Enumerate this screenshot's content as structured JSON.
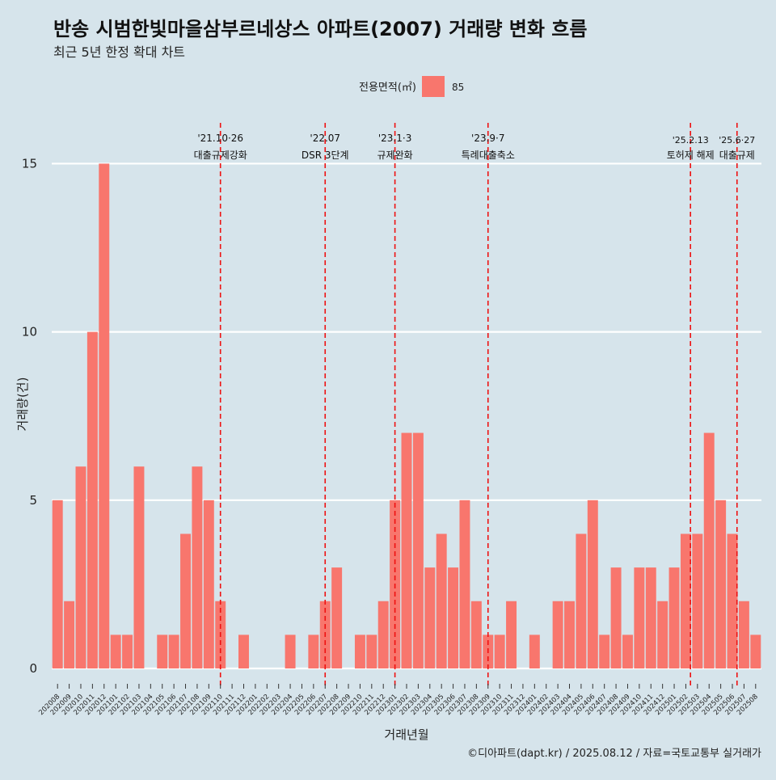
{
  "colors": {
    "background": "#d6e4eb",
    "bar": "#f8766d",
    "grid": "#ffffff",
    "event_line": "#ee1111"
  },
  "chart_data": {
    "type": "bar",
    "title": "반송 시범한빛마을삼부르네상스 아파트(2007) 거래량 변화 흐름",
    "subtitle": "최근 5년 한정 확대 차트",
    "xlabel": "거래년월",
    "ylabel": "거래량(건)",
    "caption": "©디아파트(dapt.kr) / 2025.08.12 / 자료=국토교통부 실거래가",
    "ylim": [
      -0.6,
      16.5
    ],
    "yticks": [
      0,
      5,
      10,
      15
    ],
    "grid": true,
    "legend": {
      "title": "전용면적(㎡)",
      "position": "top-center",
      "entries": [
        "85"
      ]
    },
    "categories": [
      "202008",
      "202009",
      "202010",
      "202011",
      "202012",
      "202101",
      "202102",
      "202103",
      "202104",
      "202105",
      "202106",
      "202107",
      "202108",
      "202109",
      "202110",
      "202111",
      "202112",
      "202201",
      "202202",
      "202203",
      "202204",
      "202205",
      "202206",
      "202207",
      "202208",
      "202209",
      "202210",
      "202211",
      "202212",
      "202301",
      "202302",
      "202303",
      "202304",
      "202305",
      "202306",
      "202307",
      "202308",
      "202309",
      "202310",
      "202311",
      "202312",
      "202401",
      "202402",
      "202403",
      "202404",
      "202405",
      "202406",
      "202407",
      "202408",
      "202409",
      "202410",
      "202411",
      "202412",
      "202501",
      "202502",
      "202503",
      "202504",
      "202505",
      "202506",
      "202507",
      "202508"
    ],
    "series": [
      {
        "name": "85",
        "values": [
          5,
          2,
          6,
          10,
          15,
          1,
          1,
          6,
          0,
          1,
          1,
          4,
          6,
          5,
          2,
          0,
          1,
          0,
          0,
          0,
          1,
          0,
          1,
          2,
          3,
          0,
          1,
          1,
          2,
          5,
          7,
          7,
          3,
          4,
          3,
          5,
          2,
          1,
          1,
          2,
          0,
          1,
          0,
          2,
          2,
          4,
          5,
          1,
          3,
          1,
          3,
          3,
          2,
          3,
          4,
          4,
          7,
          5,
          4,
          2,
          1
        ]
      }
    ],
    "annotations": [
      {
        "x_index": 14.0,
        "line1": "'21.10·26",
        "line2": "대출규제강화"
      },
      {
        "x_index": 23.0,
        "line1": "'22.07",
        "line2": "DSR 3단계"
      },
      {
        "x_index": 29.0,
        "line1": "'23.1·3",
        "line2": "규제완화"
      },
      {
        "x_index": 37.0,
        "line1": "'23.9·7",
        "line2": "특례대출축소"
      },
      {
        "x_index": 54.4,
        "line1": "'25.2.13",
        "line2": "토허제 해제"
      },
      {
        "x_index": 58.4,
        "line1": "'25.6·27",
        "line2": "대출규제"
      }
    ]
  }
}
